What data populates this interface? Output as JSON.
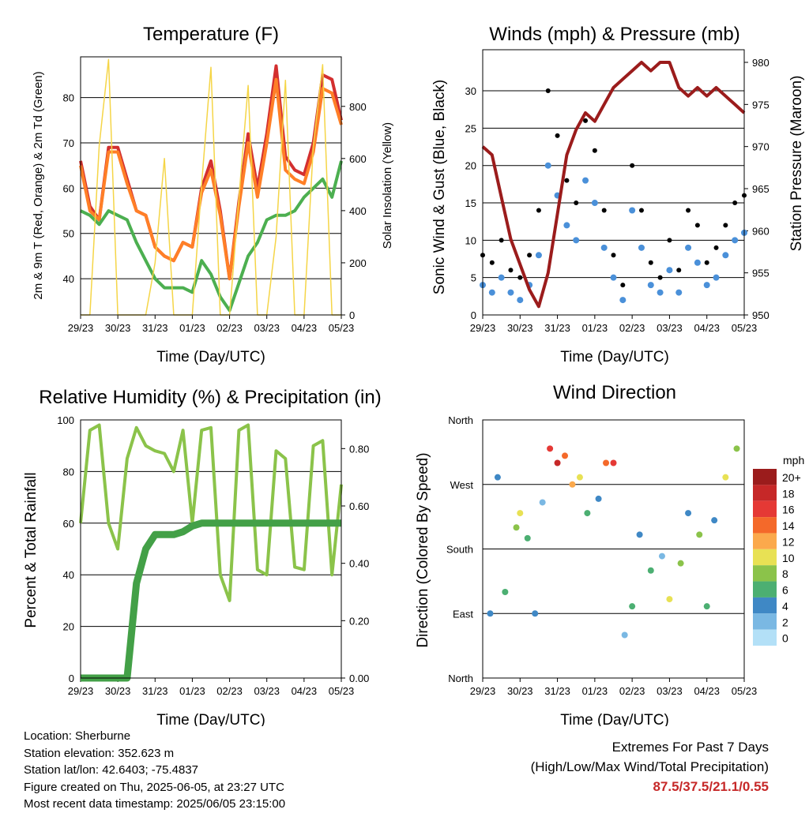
{
  "x_tick_labels": [
    "29/23",
    "30/23",
    "31/23",
    "01/23",
    "02/23",
    "03/23",
    "04/23",
    "05/23"
  ],
  "chart_data": [
    {
      "type": "line",
      "title": "Temperature (F)",
      "xlabel": "Time (Day/UTC)",
      "ylabel": "2m & 9m T (Red, Orange) & 2m Td (Green)",
      "ylabel_right": "Solar Insolation (Yellow)",
      "ylim": [
        32,
        89
      ],
      "yticks": [
        40,
        50,
        60,
        70,
        80
      ],
      "ylim_right": [
        0,
        990
      ],
      "yticks_right": [
        0,
        200,
        400,
        600,
        800
      ],
      "x": [
        0,
        0.25,
        0.5,
        0.75,
        1,
        1.25,
        1.5,
        1.75,
        2,
        2.25,
        2.5,
        2.75,
        3,
        3.25,
        3.5,
        3.75,
        4,
        4.25,
        4.5,
        4.75,
        5,
        5.25,
        5.5,
        5.75,
        6,
        6.25,
        6.5,
        6.75,
        7
      ],
      "series": [
        {
          "color": "#d32f2f",
          "values": [
            66,
            56,
            53,
            69,
            69,
            62,
            55,
            54,
            47,
            45,
            44,
            48,
            47,
            60,
            66,
            55,
            40,
            57,
            72,
            60,
            72,
            87,
            67,
            64,
            63,
            70,
            85,
            84,
            75
          ]
        },
        {
          "color": "#ff7f27",
          "values": [
            65,
            55,
            53,
            68,
            68,
            61,
            55,
            54,
            47,
            45,
            44,
            48,
            47,
            59,
            64,
            54,
            40,
            56,
            70,
            58,
            70,
            84,
            64,
            62,
            61,
            68,
            82,
            81,
            74
          ]
        },
        {
          "color": "#4caf50",
          "values": [
            55,
            54,
            52,
            55,
            54,
            53,
            48,
            44,
            40,
            38,
            38,
            38,
            37,
            44,
            41,
            36,
            33,
            39,
            45,
            48,
            53,
            54,
            54,
            55,
            58,
            60,
            62,
            58,
            66
          ]
        },
        {
          "color": "#f5d547",
          "axis": "right",
          "values": [
            0,
            0,
            650,
            980,
            0,
            0,
            0,
            0,
            200,
            600,
            0,
            0,
            0,
            500,
            950,
            0,
            0,
            450,
            880,
            0,
            0,
            300,
            900,
            0,
            0,
            650,
            960,
            0,
            0
          ]
        }
      ]
    },
    {
      "type": "scatter",
      "title": "Winds (mph) & Pressure (mb)",
      "xlabel": "Time (Day/UTC)",
      "ylabel": "Sonic Wind & Gust (Blue, Black)",
      "ylabel_right": "Station Pressure (Maroon)",
      "ylim": [
        0,
        35.5
      ],
      "yticks": [
        0,
        5,
        10,
        15,
        20,
        25,
        30
      ],
      "ylim_right": [
        950,
        981.5
      ],
      "yticks_right": [
        950,
        955,
        960,
        965,
        970,
        975,
        980
      ],
      "x": [
        0,
        0.25,
        0.5,
        0.75,
        1,
        1.25,
        1.5,
        1.75,
        2,
        2.25,
        2.5,
        2.75,
        3,
        3.25,
        3.5,
        3.75,
        4,
        4.25,
        4.5,
        4.75,
        5,
        5.25,
        5.5,
        5.75,
        6,
        6.25,
        6.5,
        6.75,
        7
      ],
      "series": [
        {
          "color": "#000000",
          "values": [
            8,
            7,
            10,
            6,
            5,
            8,
            14,
            30,
            24,
            18,
            15,
            26,
            22,
            14,
            8,
            4,
            20,
            14,
            7,
            5,
            10,
            6,
            14,
            12,
            7,
            9,
            12,
            15,
            16
          ]
        },
        {
          "color": "#4a90d9",
          "values": [
            4,
            3,
            5,
            3,
            2,
            4,
            8,
            20,
            16,
            12,
            10,
            18,
            15,
            9,
            5,
            2,
            14,
            9,
            4,
            3,
            6,
            3,
            9,
            7,
            4,
            5,
            8,
            10,
            11
          ]
        },
        {
          "color": "#9b1c1c",
          "axis": "right",
          "values": [
            970,
            969,
            964,
            959,
            956,
            953,
            951,
            955,
            962,
            969,
            972,
            974,
            973,
            975,
            977,
            978,
            979,
            980,
            979,
            980,
            980,
            977,
            976,
            977,
            976,
            977,
            976,
            975,
            974
          ]
        }
      ]
    },
    {
      "type": "line",
      "title": "Relative Humidity (%) & Precipitation (in)",
      "xlabel": "Time (Day/UTC)",
      "ylabel": "Percent & Total Rainfall",
      "ylim": [
        0,
        100
      ],
      "yticks": [
        0,
        20,
        40,
        60,
        80,
        100
      ],
      "ylim_right": [
        0,
        0.9
      ],
      "yticks_right": [
        "0.00",
        "0.20",
        "0.40",
        "0.60",
        "0.80"
      ],
      "x": [
        0,
        0.25,
        0.5,
        0.75,
        1,
        1.25,
        1.5,
        1.75,
        2,
        2.25,
        2.5,
        2.75,
        3,
        3.25,
        3.5,
        3.75,
        4,
        4.25,
        4.5,
        4.75,
        5,
        5.25,
        5.5,
        5.75,
        6,
        6.25,
        6.5,
        6.75,
        7
      ],
      "series": [
        {
          "color": "#8bc34a",
          "values": [
            60,
            96,
            98,
            60,
            50,
            85,
            97,
            90,
            88,
            87,
            80,
            96,
            60,
            96,
            97,
            40,
            30,
            96,
            98,
            42,
            40,
            88,
            85,
            43,
            42,
            90,
            92,
            40,
            75
          ]
        },
        {
          "color": "#43a047",
          "axis": "right",
          "values": [
            0,
            0,
            0,
            0,
            0,
            0,
            0.33,
            0.45,
            0.5,
            0.5,
            0.5,
            0.51,
            0.53,
            0.54,
            0.54,
            0.54,
            0.54,
            0.54,
            0.54,
            0.54,
            0.54,
            0.54,
            0.54,
            0.54,
            0.54,
            0.54,
            0.54,
            0.54,
            0.54
          ]
        }
      ]
    },
    {
      "type": "scatter",
      "title": "Wind Direction",
      "xlabel": "Time (Day/UTC)",
      "ylabel": "Direction (Colored By Speed)",
      "ytick_labels": [
        "North",
        "East",
        "South",
        "West",
        "North"
      ],
      "ylim": [
        0,
        360
      ],
      "colorbar_title": "mph",
      "colorbar_labels": [
        "20+",
        "18",
        "16",
        "14",
        "12",
        "10",
        "8",
        "6",
        "4",
        "2",
        "0"
      ],
      "colorbar_colors": [
        "#9b1c1c",
        "#c62828",
        "#e53935",
        "#f4692a",
        "#fba94c",
        "#e8e154",
        "#8bc34a",
        "#4caf72",
        "#3f88c5",
        "#7ab8e3",
        "#b3e0f7"
      ],
      "x": [
        0.2,
        0.4,
        0.6,
        0.9,
        1.0,
        1.2,
        1.4,
        1.6,
        1.8,
        2.0,
        2.2,
        2.4,
        2.6,
        2.8,
        3.1,
        3.3,
        3.5,
        3.8,
        4.0,
        4.2,
        4.5,
        4.8,
        5.0,
        5.3,
        5.5,
        5.8,
        6.0,
        6.2,
        6.5,
        6.8
      ],
      "y": [
        90,
        280,
        120,
        210,
        230,
        195,
        90,
        245,
        320,
        300,
        310,
        270,
        280,
        230,
        250,
        300,
        300,
        60,
        100,
        200,
        150,
        170,
        110,
        160,
        230,
        200,
        100,
        220,
        280,
        320
      ],
      "speed": [
        4,
        3,
        5,
        8,
        10,
        6,
        4,
        2,
        16,
        18,
        14,
        12,
        10,
        6,
        4,
        14,
        16,
        2,
        6,
        4,
        6,
        2,
        10,
        8,
        4,
        8,
        6,
        4,
        10,
        8
      ]
    }
  ],
  "info": {
    "location": "Location: Sherburne",
    "elevation": "Station elevation: 352.623 m",
    "latlon": "Station lat/lon: 42.6403; -75.4837",
    "created": "Figure created on Thu, 2025-06-05, at 23:27 UTC",
    "latest": "Most recent data timestamp: 2025/06/05 23:15:00"
  },
  "extremes": {
    "title": "Extremes For Past 7 Days",
    "subtitle": "(High/Low/Max Wind/Total Precipitation)",
    "values": "87.5/37.5/21.1/0.55"
  }
}
